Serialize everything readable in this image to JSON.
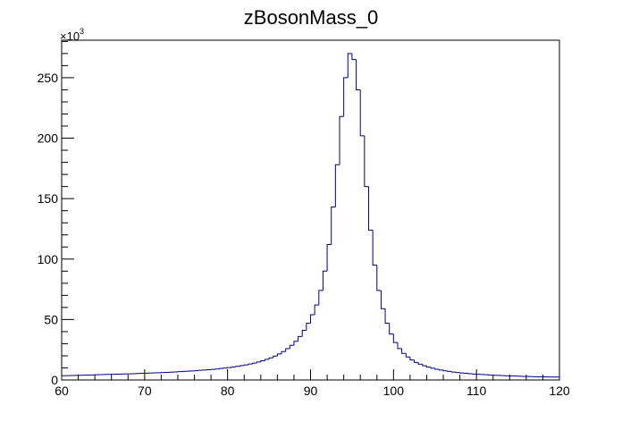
{
  "chart_data": {
    "type": "line",
    "title": "zBosonMass_0",
    "xlabel": "",
    "ylabel": "",
    "xlim": [
      60,
      120
    ],
    "ylim": [
      0,
      281000
    ],
    "y_multiplier_label": "×10",
    "y_multiplier_exp": "3",
    "x_ticks": [
      60,
      70,
      80,
      90,
      100,
      110,
      120
    ],
    "x_tick_labels": [
      "60",
      "70",
      "80",
      "90",
      "100",
      "110",
      "120"
    ],
    "y_ticks": [
      0,
      50000,
      100000,
      150000,
      200000,
      250000
    ],
    "y_tick_labels": [
      "0",
      "50",
      "100",
      "150",
      "200",
      "250"
    ],
    "grid": false,
    "line_color": "#000080",
    "bin_width": 0.5,
    "bin_edges_start": 60,
    "values": [
      3500,
      3600,
      3700,
      3800,
      3900,
      4000,
      4100,
      4200,
      4300,
      4400,
      4500,
      4600,
      4700,
      4800,
      4900,
      5000,
      5100,
      5200,
      5400,
      5500,
      5600,
      5700,
      5900,
      6000,
      6200,
      6300,
      6500,
      6700,
      6900,
      7100,
      7300,
      7500,
      7700,
      8000,
      8200,
      8500,
      8800,
      9100,
      9500,
      9900,
      10300,
      10800,
      11300,
      11900,
      12500,
      13200,
      14000,
      14900,
      15900,
      17000,
      18300,
      19800,
      21500,
      23500,
      25900,
      28700,
      32000,
      36000,
      41000,
      47000,
      54000,
      62000,
      74000,
      90000,
      112000,
      143000,
      178000,
      218000,
      250000,
      270000,
      265000,
      240000,
      202000,
      160000,
      124000,
      95000,
      74000,
      59000,
      47000,
      38000,
      31000,
      26000,
      22000,
      19000,
      16500,
      14500,
      13000,
      11700,
      10600,
      9700,
      8900,
      8200,
      7600,
      7100,
      6600,
      6200,
      5800,
      5500,
      5200,
      4900,
      4700,
      4500,
      4300,
      4100,
      3900,
      3750,
      3600,
      3450,
      3300,
      3200,
      3100,
      3000,
      2900,
      2800,
      2700,
      2600,
      2550,
      2500,
      2450,
      2400
    ]
  }
}
